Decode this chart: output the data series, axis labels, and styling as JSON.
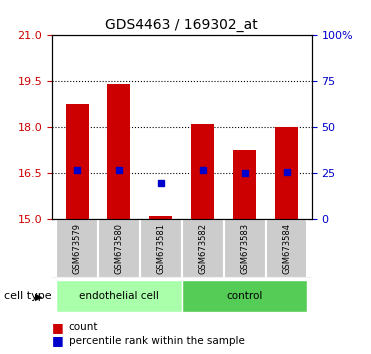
{
  "title": "GDS4463 / 169302_at",
  "samples": [
    "GSM673579",
    "GSM673580",
    "GSM673581",
    "GSM673582",
    "GSM673583",
    "GSM673584"
  ],
  "red_bar_top": [
    18.75,
    19.4,
    15.1,
    18.1,
    17.25,
    18.0
  ],
  "red_bar_bottom": 15.0,
  "blue_square_y": [
    16.6,
    16.6,
    16.2,
    16.6,
    16.5,
    16.55
  ],
  "cell_types": [
    {
      "label": "endothelial cell",
      "indices": [
        0,
        1,
        2
      ]
    },
    {
      "label": "control",
      "indices": [
        3,
        4,
        5
      ]
    }
  ],
  "ylim_left": [
    15,
    21
  ],
  "yticks_left": [
    15,
    16.5,
    18,
    19.5,
    21
  ],
  "ylim_right": [
    0,
    100
  ],
  "yticks_right": [
    0,
    25,
    50,
    75,
    100
  ],
  "ytick_labels_right": [
    "0",
    "25",
    "50",
    "75",
    "100%"
  ],
  "red_color": "#cc0000",
  "blue_color": "#0000cc",
  "gray_bg": "#cccccc",
  "light_green": "#aaffaa",
  "dark_green": "#55cc55"
}
